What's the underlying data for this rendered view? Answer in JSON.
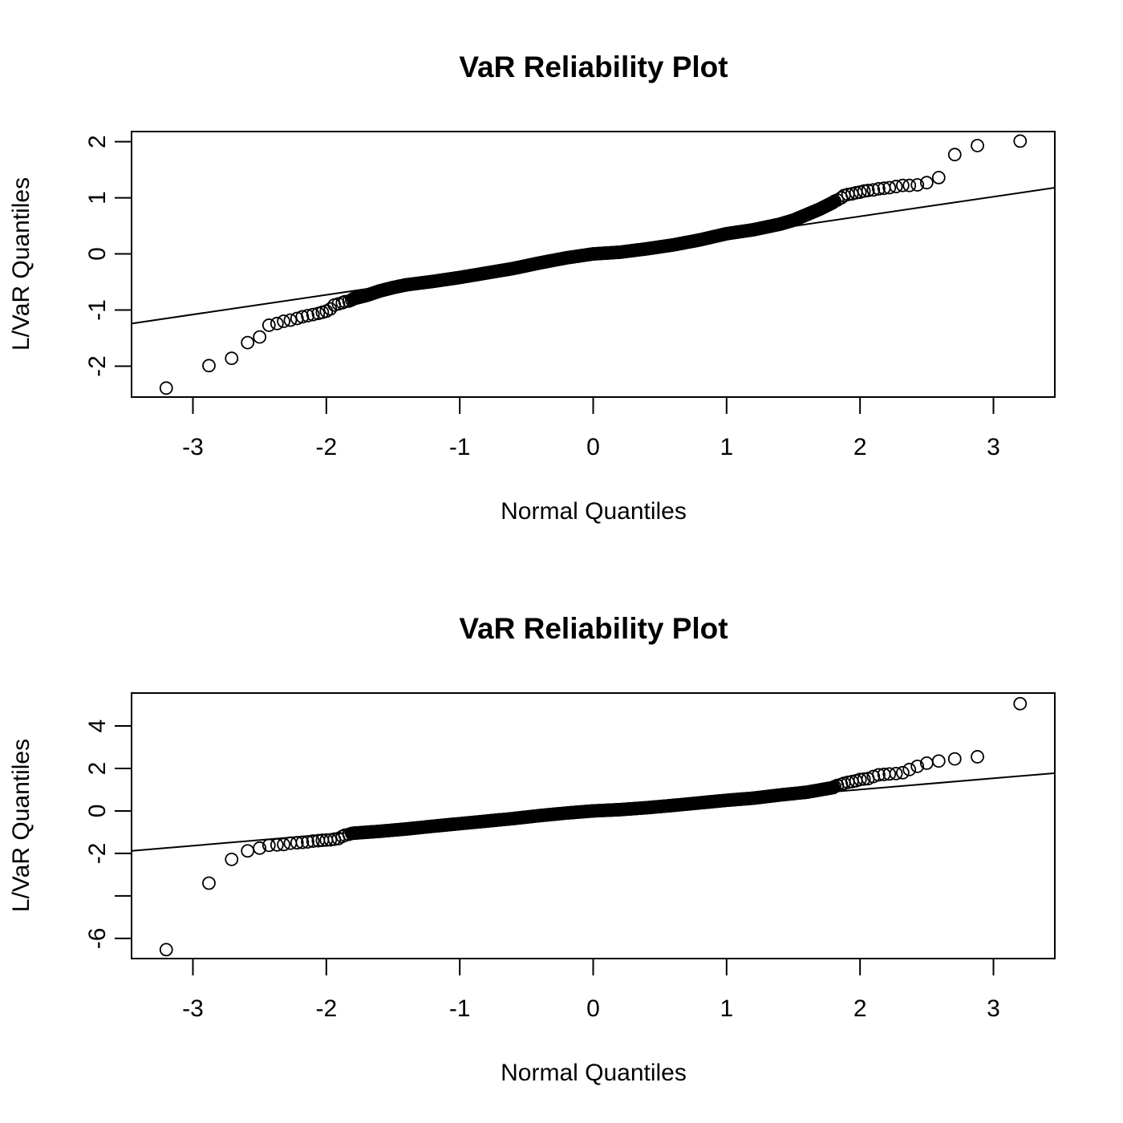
{
  "chart_data": [
    {
      "type": "scatter",
      "title": "VaR Reliability Plot",
      "xlabel": "Normal Quantiles",
      "ylabel": "L/VaR Quantiles",
      "xlim": [
        -3.46,
        3.46
      ],
      "ylim": [
        -2.55,
        2.18
      ],
      "x_ticks": [
        -3,
        -2,
        -1,
        0,
        1,
        2,
        3
      ],
      "x_tick_labels": [
        "-3",
        "-2",
        "-1",
        "0",
        "1",
        "2",
        "3"
      ],
      "y_ticks": [
        -2,
        -1,
        0,
        1,
        2
      ],
      "y_tick_labels": [
        "-2",
        "-1",
        "0",
        "1",
        "2"
      ],
      "grid": false,
      "reference_line": {
        "x": [
          -3.46,
          3.46
        ],
        "y": [
          -1.24,
          1.18
        ]
      },
      "tail_points": {
        "x": [
          -3.2,
          -2.88,
          -2.71,
          -2.59,
          -2.5,
          -2.43,
          -2.37,
          -2.32,
          -2.27,
          -2.22,
          -2.18,
          -2.14,
          -2.1,
          -2.06,
          -2.03,
          -2.0,
          -1.97,
          -1.94,
          -1.91,
          -1.88,
          -1.86,
          -1.83,
          -1.81,
          1.81,
          1.83,
          1.86,
          1.88,
          1.91,
          1.94,
          1.97,
          2.0,
          2.03,
          2.06,
          2.1,
          2.14,
          2.18,
          2.22,
          2.27,
          2.32,
          2.37,
          2.43,
          2.5,
          2.59,
          2.71,
          2.88,
          3.2
        ],
        "y": [
          -2.39,
          -1.99,
          -1.86,
          -1.58,
          -1.48,
          -1.27,
          -1.24,
          -1.2,
          -1.18,
          -1.15,
          -1.12,
          -1.1,
          -1.08,
          -1.06,
          -1.04,
          -1.02,
          -0.98,
          -0.91,
          -0.89,
          -0.87,
          -0.85,
          -0.84,
          -0.82,
          0.94,
          0.96,
          1.0,
          1.04,
          1.06,
          1.07,
          1.09,
          1.1,
          1.12,
          1.13,
          1.14,
          1.16,
          1.17,
          1.18,
          1.2,
          1.22,
          1.22,
          1.23,
          1.27,
          1.36,
          1.77,
          1.93,
          2.01
        ]
      },
      "body_segments": [
        {
          "x": -1.8,
          "y": -0.8
        },
        {
          "x": -1.7,
          "y": -0.74
        },
        {
          "x": -1.6,
          "y": -0.66
        },
        {
          "x": -1.5,
          "y": -0.6
        },
        {
          "x": -1.4,
          "y": -0.55
        },
        {
          "x": -1.2,
          "y": -0.49
        },
        {
          "x": -1.0,
          "y": -0.42
        },
        {
          "x": -0.8,
          "y": -0.34
        },
        {
          "x": -0.6,
          "y": -0.26
        },
        {
          "x": -0.4,
          "y": -0.16
        },
        {
          "x": -0.2,
          "y": -0.07
        },
        {
          "x": 0.0,
          "y": 0.0
        },
        {
          "x": 0.2,
          "y": 0.03
        },
        {
          "x": 0.4,
          "y": 0.09
        },
        {
          "x": 0.6,
          "y": 0.16
        },
        {
          "x": 0.8,
          "y": 0.25
        },
        {
          "x": 1.0,
          "y": 0.36
        },
        {
          "x": 1.2,
          "y": 0.43
        },
        {
          "x": 1.4,
          "y": 0.53
        },
        {
          "x": 1.5,
          "y": 0.6
        },
        {
          "x": 1.6,
          "y": 0.7
        },
        {
          "x": 1.7,
          "y": 0.8
        },
        {
          "x": 1.8,
          "y": 0.92
        }
      ]
    },
    {
      "type": "scatter",
      "title": "VaR Reliability Plot",
      "xlabel": "Normal Quantiles",
      "ylabel": "L/VaR Quantiles",
      "xlim": [
        -3.46,
        3.46
      ],
      "ylim": [
        -6.95,
        5.55
      ],
      "x_ticks": [
        -3,
        -2,
        -1,
        0,
        1,
        2,
        3
      ],
      "x_tick_labels": [
        "-3",
        "-2",
        "-1",
        "0",
        "1",
        "2",
        "3"
      ],
      "y_ticks": [
        -6,
        -4,
        -2,
        0,
        2,
        4
      ],
      "y_tick_labels": [
        "-6",
        "",
        "-2",
        "0",
        "2",
        "4"
      ],
      "grid": false,
      "reference_line": {
        "x": [
          -3.46,
          3.46
        ],
        "y": [
          -1.88,
          1.78
        ]
      },
      "tail_points": {
        "x": [
          -3.2,
          -2.88,
          -2.71,
          -2.59,
          -2.5,
          -2.43,
          -2.37,
          -2.32,
          -2.27,
          -2.22,
          -2.18,
          -2.14,
          -2.1,
          -2.06,
          -2.03,
          -2.0,
          -1.97,
          -1.94,
          -1.91,
          -1.88,
          -1.86,
          -1.83,
          -1.81,
          1.81,
          1.83,
          1.86,
          1.88,
          1.91,
          1.94,
          1.97,
          2.0,
          2.03,
          2.06,
          2.1,
          2.14,
          2.18,
          2.22,
          2.27,
          2.32,
          2.37,
          2.43,
          2.5,
          2.59,
          2.71,
          2.88,
          3.2
        ],
        "y": [
          -6.53,
          -3.4,
          -2.28,
          -1.88,
          -1.75,
          -1.62,
          -1.6,
          -1.58,
          -1.52,
          -1.5,
          -1.48,
          -1.46,
          -1.42,
          -1.4,
          -1.38,
          -1.37,
          -1.36,
          -1.33,
          -1.3,
          -1.2,
          -1.14,
          -1.1,
          -1.06,
          1.15,
          1.2,
          1.25,
          1.3,
          1.35,
          1.38,
          1.42,
          1.48,
          1.5,
          1.52,
          1.62,
          1.7,
          1.72,
          1.74,
          1.76,
          1.8,
          1.95,
          2.1,
          2.25,
          2.35,
          2.45,
          2.55,
          5.05
        ]
      },
      "body_segments": [
        {
          "x": -1.8,
          "y": -1.05
        },
        {
          "x": -1.6,
          "y": -0.96
        },
        {
          "x": -1.4,
          "y": -0.85
        },
        {
          "x": -1.2,
          "y": -0.72
        },
        {
          "x": -1.0,
          "y": -0.6
        },
        {
          "x": -0.8,
          "y": -0.48
        },
        {
          "x": -0.6,
          "y": -0.36
        },
        {
          "x": -0.4,
          "y": -0.22
        },
        {
          "x": -0.2,
          "y": -0.1
        },
        {
          "x": 0.0,
          "y": 0.0
        },
        {
          "x": 0.2,
          "y": 0.06
        },
        {
          "x": 0.4,
          "y": 0.15
        },
        {
          "x": 0.6,
          "y": 0.26
        },
        {
          "x": 0.8,
          "y": 0.38
        },
        {
          "x": 1.0,
          "y": 0.5
        },
        {
          "x": 1.2,
          "y": 0.6
        },
        {
          "x": 1.4,
          "y": 0.75
        },
        {
          "x": 1.6,
          "y": 0.88
        },
        {
          "x": 1.8,
          "y": 1.1
        }
      ]
    }
  ]
}
